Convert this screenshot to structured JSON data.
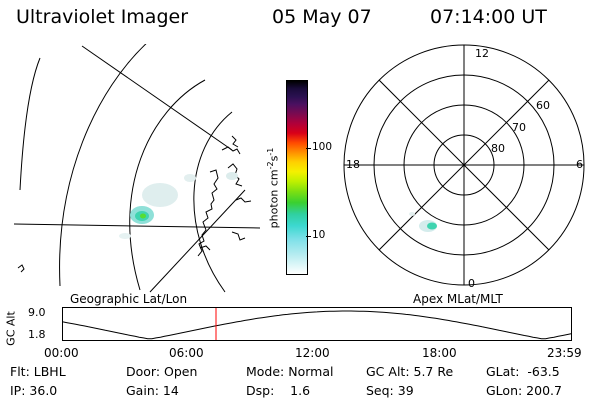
{
  "header": {
    "title": "Ultraviolet Imager",
    "date": "05 May 07",
    "time": "07:14:00 UT"
  },
  "left_panel": {
    "label": "Geographic Lat/Lon"
  },
  "right_panel": {
    "label": "Apex MLat/MLT",
    "mlt_labels": {
      "top": "12",
      "right": "6",
      "bottom": "0",
      "left": "18"
    },
    "lat_labels": [
      "60",
      "70",
      "80"
    ]
  },
  "colorbar": {
    "unit": "photon cm",
    "exp1": "-2",
    "s": "s",
    "exp2": "-1",
    "ticks": [
      "100",
      "10"
    ],
    "scale": "log"
  },
  "altitude_plot": {
    "axis_label": "GC Alt",
    "y_ticks": [
      "9.0",
      "1.8"
    ],
    "x_ticks": [
      "00:00",
      "06:00",
      "12:00",
      "18:00",
      "23:59"
    ],
    "current_time_hours": 7.23,
    "ylim": [
      1.8,
      9.0
    ]
  },
  "info": {
    "filter": "Flt: LBHL",
    "ip": "IP: 36.0",
    "door": "Door: Open",
    "gain": "Gain: 14",
    "mode": "Mode: Normal",
    "dsp": "Dsp:    1.6",
    "gc_alt": "GC Alt: 5.7 Re",
    "seq": "Seq: 39",
    "glat": "GLat:  -63.5",
    "glon": "GLon: 200.7"
  },
  "colors": {
    "altitude_marker": "#ff0000",
    "foreground": "#000000"
  }
}
